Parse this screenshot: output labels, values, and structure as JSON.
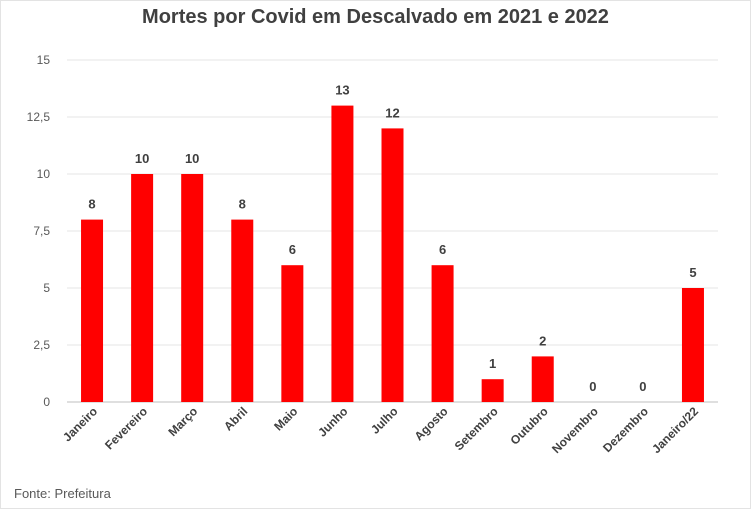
{
  "chart_data": {
    "type": "bar",
    "title": "Mortes por Covid em Descalvado em 2021 e 2022",
    "categories": [
      "Janeiro",
      "Fevereiro",
      "Março",
      "Abril",
      "Maio",
      "Junho",
      "Julho",
      "Agosto",
      "Setembro",
      "Outubro",
      "Novembro",
      "Dezembro",
      "Janeiro/22"
    ],
    "values": [
      8,
      10,
      10,
      8,
      6,
      13,
      12,
      6,
      1,
      2,
      0,
      0,
      5
    ],
    "ylim": [
      0,
      15
    ],
    "yticks": [
      "0",
      "2,5",
      "5",
      "7,5",
      "10",
      "12,5",
      "15"
    ],
    "xlabel": "",
    "ylabel": "",
    "grid": true,
    "bar_color": "#ff0000",
    "source": "Fonte: Prefeitura"
  }
}
